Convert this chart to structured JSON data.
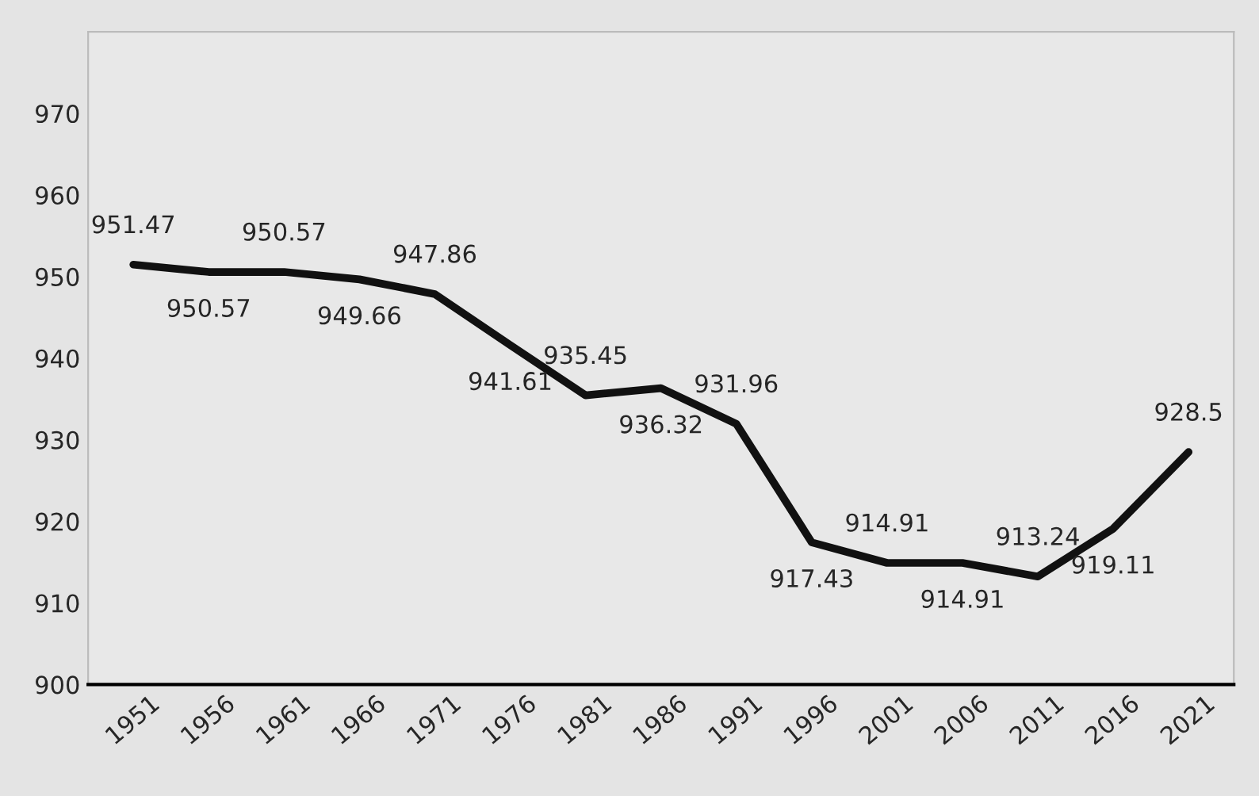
{
  "chart_data": {
    "type": "line",
    "categories": [
      "1951",
      "1956",
      "1961",
      "1966",
      "1971",
      "1976",
      "1981",
      "1986",
      "1991",
      "1996",
      "2001",
      "2006",
      "2011",
      "2016",
      "2021"
    ],
    "series": [
      {
        "color": "#111111",
        "values": [
          951.47,
          950.57,
          950.57,
          949.66,
          947.86,
          941.61,
          935.45,
          936.32,
          931.96,
          917.43,
          914.91,
          914.91,
          913.24,
          919.11,
          928.5
        ]
      }
    ],
    "ylim": [
      900,
      980
    ],
    "yticks": [
      900,
      910,
      920,
      930,
      940,
      950,
      960,
      970
    ],
    "data_labels": true,
    "grid": false,
    "legend": false,
    "marker": "none",
    "line_style": "solid"
  }
}
